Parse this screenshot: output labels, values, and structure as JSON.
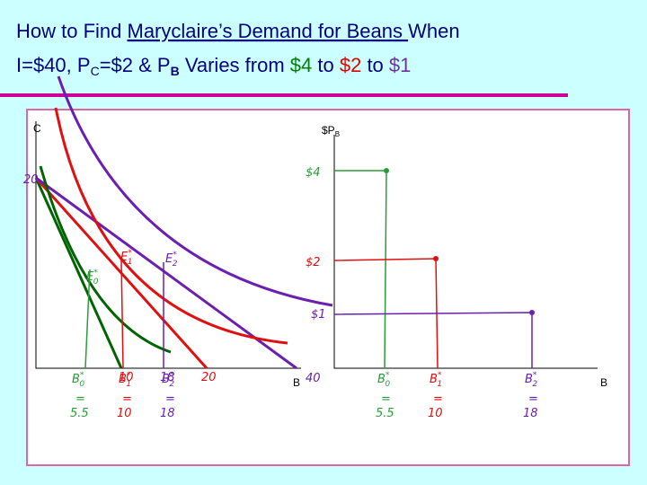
{
  "header": {
    "line1": {
      "lead": "How to Find ",
      "underlined": "Maryclaire’s Demand for Beans ",
      "tail": "When"
    },
    "line2": {
      "budget": "I=$40, P",
      "pc_sub": "C",
      "pc_value": "=$2 & P",
      "pb_sub": "B",
      "varies": " Varies from ",
      "p0": "$4",
      "to1": " to ",
      "p1": "$2",
      "to2": " to ",
      "p2": "$1"
    }
  },
  "left_graph": {
    "y_axis_label": "C",
    "x_axis_label": "B",
    "c_intercept": "20",
    "b_intercepts": [
      "10",
      "20",
      "40"
    ],
    "b_mid": "18",
    "equilibria": [
      {
        "letter": "E",
        "star": "*",
        "sub": "0"
      },
      {
        "letter": "E",
        "star": "*",
        "sub": "1"
      },
      {
        "letter": "E",
        "star": "*",
        "sub": "2"
      }
    ],
    "quantities": [
      {
        "letter": "B",
        "star": "*",
        "sub": "0",
        "eq": "=",
        "value": "5.5"
      },
      {
        "letter": "B",
        "star": "*",
        "sub": "1",
        "eq": "=",
        "value": "10"
      },
      {
        "letter": "B",
        "star": "*",
        "sub": "2",
        "eq": "=",
        "value": "18"
      }
    ]
  },
  "right_graph": {
    "y_axis_label": "$P",
    "y_axis_sub": "B",
    "x_axis_label": "B",
    "prices": [
      "$4",
      "$2",
      "$1"
    ],
    "quantities": [
      {
        "letter": "B",
        "star": "*",
        "sub": "0",
        "eq": "=",
        "value": "5.5"
      },
      {
        "letter": "B",
        "star": "*",
        "sub": "1",
        "eq": "=",
        "value": "10"
      },
      {
        "letter": "B",
        "star": "*",
        "sub": "2",
        "eq": "=",
        "value": "18"
      }
    ]
  }
}
